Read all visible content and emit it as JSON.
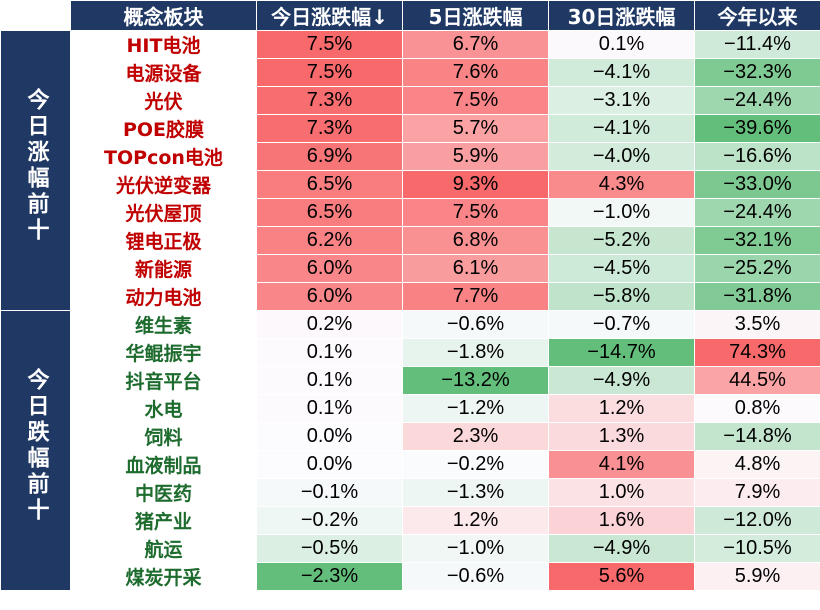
{
  "headers": [
    "概念板块",
    "今日涨跌幅↓",
    "5日涨跌幅",
    "30日涨跌幅",
    "今年以来"
  ],
  "groups": [
    {
      "label": "今日涨幅前十",
      "kind": "up",
      "rows": [
        {
          "name": "HIT电池",
          "d1": "7.5%",
          "d5": "6.7%",
          "d30": "0.1%",
          "ytd": "−11.4%"
        },
        {
          "name": "电源设备",
          "d1": "7.5%",
          "d5": "7.6%",
          "d30": "−4.1%",
          "ytd": "−32.3%"
        },
        {
          "name": "光伏",
          "d1": "7.3%",
          "d5": "7.5%",
          "d30": "−3.1%",
          "ytd": "−24.4%"
        },
        {
          "name": "POE胶膜",
          "d1": "7.3%",
          "d5": "5.7%",
          "d30": "−4.1%",
          "ytd": "−39.6%"
        },
        {
          "name": "TOPcon电池",
          "d1": "6.9%",
          "d5": "5.9%",
          "d30": "−4.0%",
          "ytd": "−16.6%"
        },
        {
          "name": "光伏逆变器",
          "d1": "6.5%",
          "d5": "9.3%",
          "d30": "4.3%",
          "ytd": "−33.0%"
        },
        {
          "name": "光伏屋顶",
          "d1": "6.5%",
          "d5": "7.5%",
          "d30": "−1.0%",
          "ytd": "−24.4%"
        },
        {
          "name": "锂电正极",
          "d1": "6.2%",
          "d5": "6.8%",
          "d30": "−5.2%",
          "ytd": "−32.1%"
        },
        {
          "name": "新能源",
          "d1": "6.0%",
          "d5": "6.1%",
          "d30": "−4.5%",
          "ytd": "−25.2%"
        },
        {
          "name": "动力电池",
          "d1": "6.0%",
          "d5": "7.7%",
          "d30": "−5.8%",
          "ytd": "−31.8%"
        }
      ]
    },
    {
      "label": "今日跌幅前十",
      "kind": "down",
      "rows": [
        {
          "name": "维生素",
          "d1": "0.2%",
          "d5": "−0.6%",
          "d30": "−0.7%",
          "ytd": "3.5%"
        },
        {
          "name": "华鲲振宇",
          "d1": "0.1%",
          "d5": "−1.8%",
          "d30": "−14.7%",
          "ytd": "74.3%"
        },
        {
          "name": "抖音平台",
          "d1": "0.1%",
          "d5": "−13.2%",
          "d30": "−4.9%",
          "ytd": "44.5%"
        },
        {
          "name": "水电",
          "d1": "0.1%",
          "d5": "−1.2%",
          "d30": "1.2%",
          "ytd": "0.8%"
        },
        {
          "name": "饲料",
          "d1": "0.0%",
          "d5": "2.3%",
          "d30": "1.3%",
          "ytd": "−14.8%"
        },
        {
          "name": "血液制品",
          "d1": "0.0%",
          "d5": "−0.2%",
          "d30": "4.1%",
          "ytd": "4.8%"
        },
        {
          "name": "中医药",
          "d1": "−0.1%",
          "d5": "−1.3%",
          "d30": "1.0%",
          "ytd": "7.9%"
        },
        {
          "name": "猪产业",
          "d1": "−0.2%",
          "d5": "1.2%",
          "d30": "1.6%",
          "ytd": "−12.0%"
        },
        {
          "name": "航运",
          "d1": "−0.5%",
          "d5": "−1.0%",
          "d30": "−4.9%",
          "ytd": "−10.5%"
        },
        {
          "name": "煤炭开采",
          "d1": "−2.3%",
          "d5": "−0.6%",
          "d30": "5.6%",
          "ytd": "5.9%"
        }
      ]
    }
  ],
  "colors": {
    "header_bg": "#1f3864",
    "header_text": "#ffffff",
    "up_text": "#c00000",
    "down_text": "#1e6b2e",
    "positive_max": "#f8696b",
    "negative_max": "#63be7b",
    "neutral": "#fcfcff"
  }
}
